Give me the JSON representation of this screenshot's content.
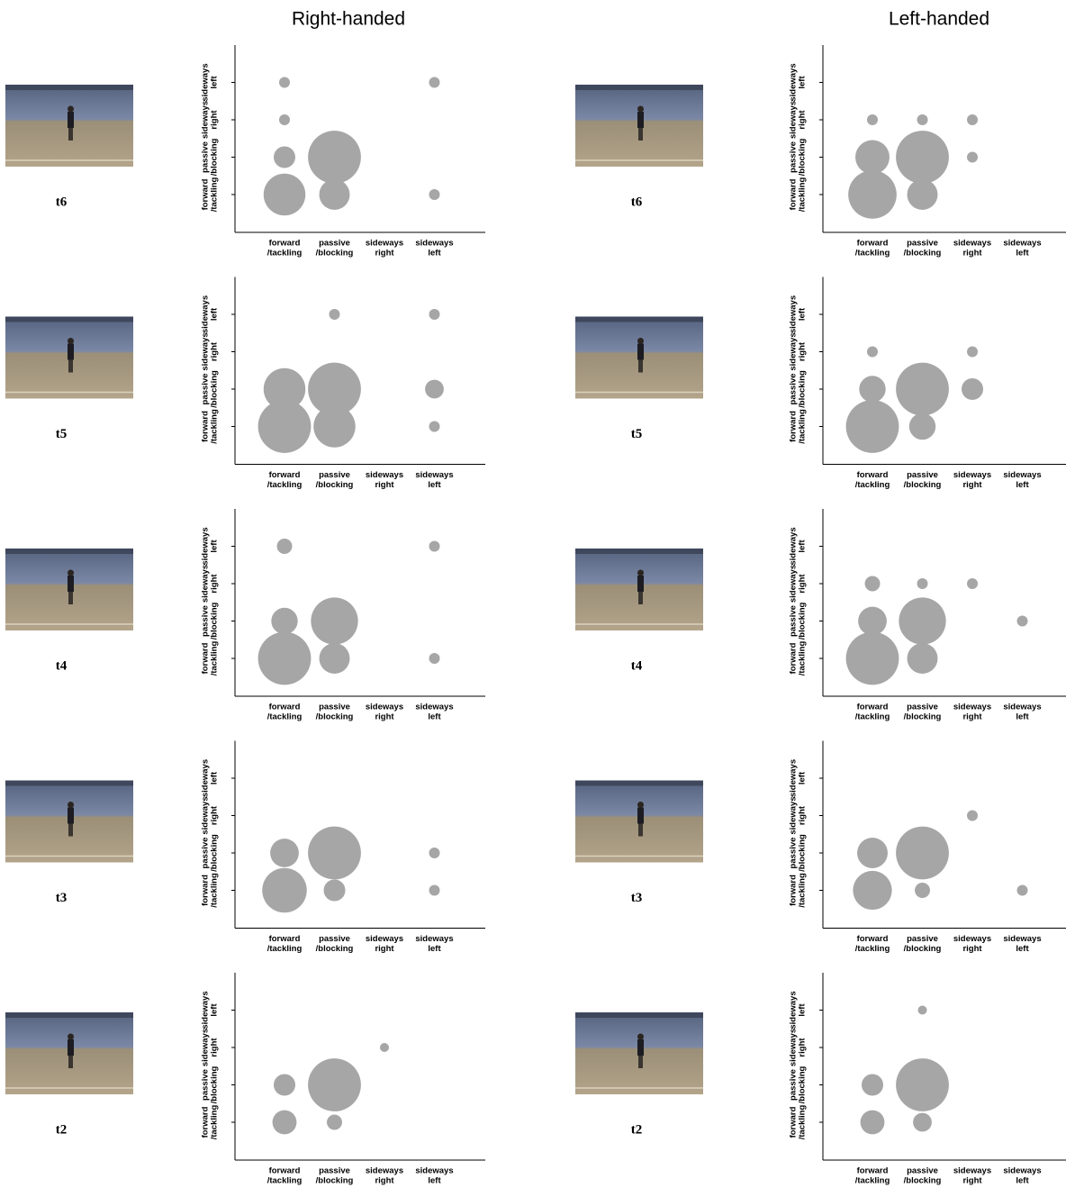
{
  "headers": [
    "Right-handed",
    "Left-handed"
  ],
  "chart_data": [
    {
      "type": "bubble",
      "label": "t6",
      "color": "#a6a6a6",
      "x_categories": [
        [
          "forward",
          "/tackling"
        ],
        [
          "passive",
          "/blocking"
        ],
        [
          "sideways",
          "right"
        ],
        [
          "sideways",
          "left"
        ]
      ],
      "y_categories": [
        [
          "forward",
          "/tackling"
        ],
        [
          "passive",
          "/blocking"
        ],
        [
          "sideways",
          "right"
        ],
        [
          "sideways",
          "left"
        ]
      ],
      "x": [
        0,
        0,
        0,
        1,
        0,
        1,
        3,
        3
      ],
      "y": [
        3,
        2,
        1,
        1,
        0,
        0,
        3,
        0
      ],
      "size": [
        1,
        1,
        4,
        24,
        15,
        8,
        1,
        1
      ]
    },
    {
      "type": "bubble",
      "label": "t6",
      "color": "#a6a6a6",
      "x_categories": [
        [
          "forward",
          "/tackling"
        ],
        [
          "passive",
          "/blocking"
        ],
        [
          "sideways",
          "right"
        ],
        [
          "sideways",
          "left"
        ]
      ],
      "y_categories": [
        [
          "forward",
          "/tackling"
        ],
        [
          "passive",
          "/blocking"
        ],
        [
          "sideways",
          "right"
        ],
        [
          "sideways",
          "left"
        ]
      ],
      "x": [
        0,
        1,
        2,
        0,
        1,
        2,
        0,
        1
      ],
      "y": [
        2,
        2,
        2,
        1,
        1,
        1,
        0,
        0
      ],
      "size": [
        1,
        1,
        1,
        10,
        24,
        1,
        20,
        8
      ]
    },
    {
      "type": "bubble",
      "label": "t5",
      "color": "#a6a6a6",
      "x_categories": [
        [
          "forward",
          "/tackling"
        ],
        [
          "passive",
          "/blocking"
        ],
        [
          "sideways",
          "right"
        ],
        [
          "sideways",
          "left"
        ]
      ],
      "y_categories": [
        [
          "forward",
          "/tackling"
        ],
        [
          "passive",
          "/blocking"
        ],
        [
          "sideways",
          "right"
        ],
        [
          "sideways",
          "left"
        ]
      ],
      "x": [
        1,
        3,
        0,
        1,
        3,
        0,
        1,
        3
      ],
      "y": [
        3,
        3,
        1,
        1,
        1,
        0,
        0,
        0
      ],
      "size": [
        1,
        1,
        15,
        24,
        3,
        24,
        15,
        1
      ]
    },
    {
      "type": "bubble",
      "label": "t5",
      "color": "#a6a6a6",
      "x_categories": [
        [
          "forward",
          "/tackling"
        ],
        [
          "passive",
          "/blocking"
        ],
        [
          "sideways",
          "right"
        ],
        [
          "sideways",
          "left"
        ]
      ],
      "y_categories": [
        [
          "forward",
          "/tackling"
        ],
        [
          "passive",
          "/blocking"
        ],
        [
          "sideways",
          "right"
        ],
        [
          "sideways",
          "left"
        ]
      ],
      "x": [
        0,
        2,
        0,
        1,
        2,
        0,
        1
      ],
      "y": [
        2,
        2,
        1,
        1,
        1,
        0,
        0
      ],
      "size": [
        1,
        1,
        6,
        24,
        4,
        24,
        6
      ]
    },
    {
      "type": "bubble",
      "label": "t4",
      "color": "#a6a6a6",
      "x_categories": [
        [
          "forward",
          "/tackling"
        ],
        [
          "passive",
          "/blocking"
        ],
        [
          "sideways",
          "right"
        ],
        [
          "sideways",
          "left"
        ]
      ],
      "y_categories": [
        [
          "forward",
          "/tackling"
        ],
        [
          "passive",
          "/blocking"
        ],
        [
          "sideways",
          "right"
        ],
        [
          "sideways",
          "left"
        ]
      ],
      "x": [
        0,
        3,
        0,
        1,
        0,
        1,
        3
      ],
      "y": [
        3,
        3,
        1,
        1,
        0,
        0,
        0
      ],
      "size": [
        2,
        1,
        6,
        19,
        24,
        8,
        1
      ]
    },
    {
      "type": "bubble",
      "label": "t4",
      "color": "#a6a6a6",
      "x_categories": [
        [
          "forward",
          "/tackling"
        ],
        [
          "passive",
          "/blocking"
        ],
        [
          "sideways",
          "right"
        ],
        [
          "sideways",
          "left"
        ]
      ],
      "y_categories": [
        [
          "forward",
          "/tackling"
        ],
        [
          "passive",
          "/blocking"
        ],
        [
          "sideways",
          "right"
        ],
        [
          "sideways",
          "left"
        ]
      ],
      "x": [
        0,
        1,
        2,
        0,
        1,
        3,
        0,
        1
      ],
      "y": [
        2,
        2,
        2,
        1,
        1,
        1,
        0,
        0
      ],
      "size": [
        2,
        1,
        1,
        7,
        19,
        1,
        24,
        8
      ]
    },
    {
      "type": "bubble",
      "label": "t3",
      "color": "#a6a6a6",
      "x_categories": [
        [
          "forward",
          "/tackling"
        ],
        [
          "passive",
          "/blocking"
        ],
        [
          "sideways",
          "right"
        ],
        [
          "sideways",
          "left"
        ]
      ],
      "y_categories": [
        [
          "forward",
          "/tackling"
        ],
        [
          "passive",
          "/blocking"
        ],
        [
          "sideways",
          "right"
        ],
        [
          "sideways",
          "left"
        ]
      ],
      "x": [
        0,
        1,
        3,
        0,
        1,
        3
      ],
      "y": [
        1,
        1,
        1,
        0,
        0,
        0
      ],
      "size": [
        7,
        24,
        1,
        17,
        4,
        1
      ]
    },
    {
      "type": "bubble",
      "label": "t3",
      "color": "#a6a6a6",
      "x_categories": [
        [
          "forward",
          "/tackling"
        ],
        [
          "passive",
          "/blocking"
        ],
        [
          "sideways",
          "right"
        ],
        [
          "sideways",
          "left"
        ]
      ],
      "y_categories": [
        [
          "forward",
          "/tackling"
        ],
        [
          "passive",
          "/blocking"
        ],
        [
          "sideways",
          "right"
        ],
        [
          "sideways",
          "left"
        ]
      ],
      "x": [
        2,
        0,
        1,
        0,
        1,
        3
      ],
      "y": [
        2,
        1,
        1,
        0,
        0,
        0
      ],
      "size": [
        1,
        8,
        24,
        13,
        2,
        1
      ]
    },
    {
      "type": "bubble",
      "label": "t2",
      "color": "#a6a6a6",
      "x_categories": [
        [
          "forward",
          "/tackling"
        ],
        [
          "passive",
          "/blocking"
        ],
        [
          "sideways",
          "right"
        ],
        [
          "sideways",
          "left"
        ]
      ],
      "y_categories": [
        [
          "forward",
          "/tackling"
        ],
        [
          "passive",
          "/blocking"
        ],
        [
          "sideways",
          "right"
        ],
        [
          "sideways",
          "left"
        ]
      ],
      "x": [
        2,
        0,
        1,
        0,
        1
      ],
      "y": [
        2,
        1,
        1,
        0,
        0
      ],
      "size": [
        0.7,
        4,
        24,
        5,
        2
      ]
    },
    {
      "type": "bubble",
      "label": "t2",
      "color": "#a6a6a6",
      "x_categories": [
        [
          "forward",
          "/tackling"
        ],
        [
          "passive",
          "/blocking"
        ],
        [
          "sideways",
          "right"
        ],
        [
          "sideways",
          "left"
        ]
      ],
      "y_categories": [
        [
          "forward",
          "/tackling"
        ],
        [
          "passive",
          "/blocking"
        ],
        [
          "sideways",
          "right"
        ],
        [
          "sideways",
          "left"
        ]
      ],
      "x": [
        1,
        0,
        1,
        0,
        1
      ],
      "y": [
        3,
        1,
        1,
        0,
        0
      ],
      "size": [
        0.7,
        4,
        24,
        5,
        3
      ]
    }
  ]
}
